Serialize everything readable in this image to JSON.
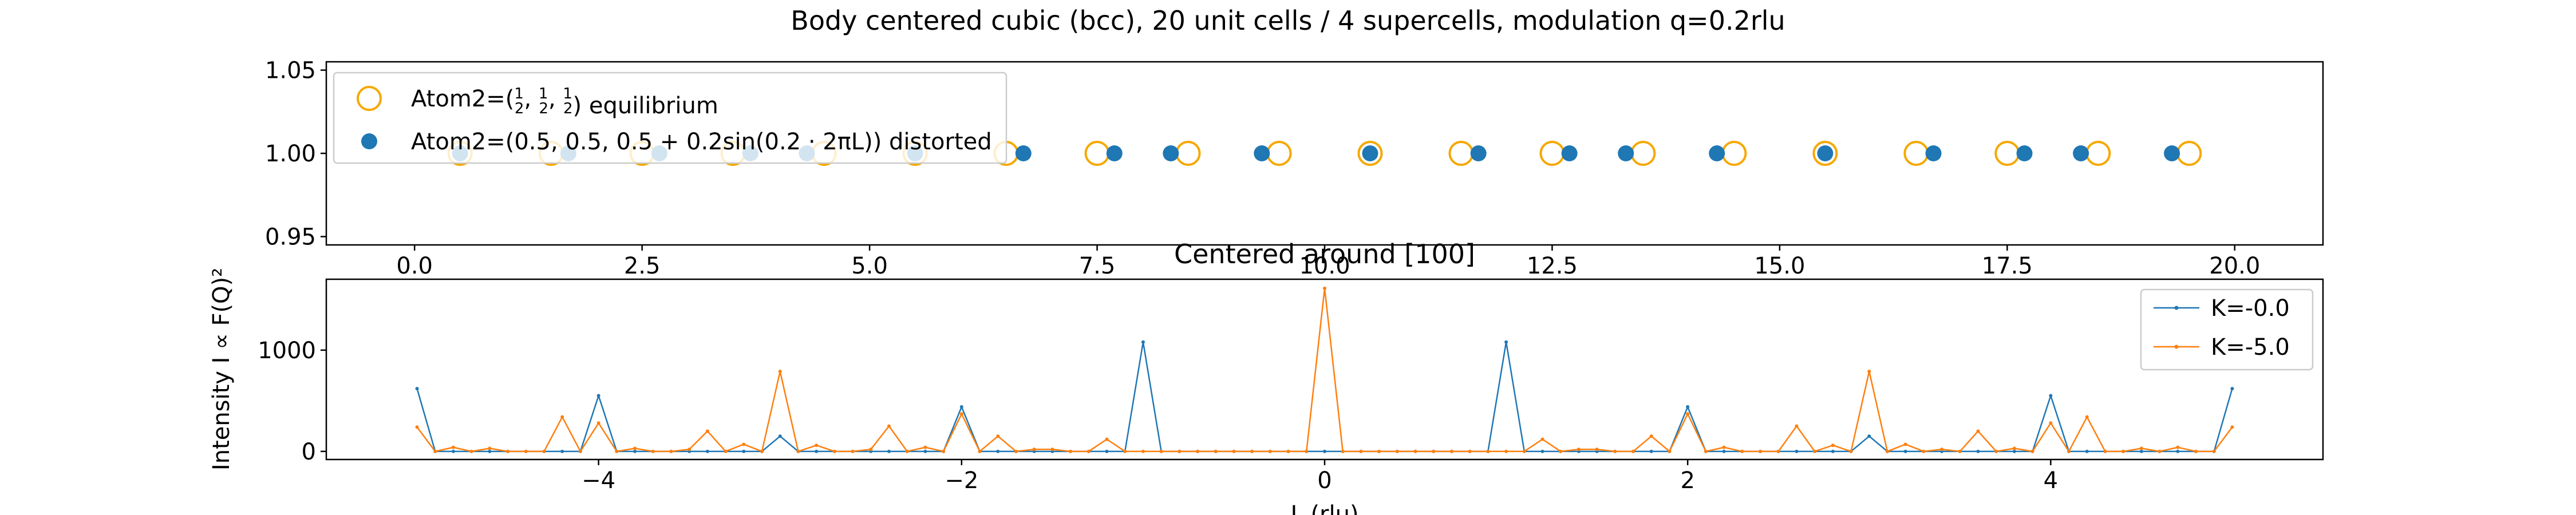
{
  "figure_title": "Body centered cubic (bcc), 20 unit cells / 4 supercells, modulation q=0.2rlu",
  "colors": {
    "blue": "#1f77b4",
    "orange": "#ff7f0e",
    "ring_orange": "#f5a800",
    "axes": "#000000"
  },
  "chart_data": [
    {
      "type": "scatter",
      "title": "",
      "xlabel": "",
      "ylabel": "",
      "xlim": [
        -0.97,
        20.97
      ],
      "ylim": [
        0.945,
        1.055
      ],
      "xticks": [
        0.0,
        2.5,
        5.0,
        7.5,
        10.0,
        12.5,
        15.0,
        17.5,
        20.0
      ],
      "xtick_labels": [
        "0.0",
        "2.5",
        "5.0",
        "7.5",
        "10.0",
        "12.5",
        "15.0",
        "17.5",
        "20.0"
      ],
      "yticks": [
        0.95,
        1.0,
        1.05
      ],
      "ytick_labels": [
        "0.95",
        "1.00",
        "1.05"
      ],
      "grid": false,
      "legend_placement": "upper-left",
      "series": [
        {
          "name_prefix": "Atom2=(",
          "name_suffix": ") equilibrium",
          "name_fraction": "1/2",
          "marker": "open-circle",
          "color": "#f5a800",
          "x": [
            0.5,
            1.5,
            2.5,
            3.5,
            4.5,
            5.5,
            6.5,
            7.5,
            8.5,
            9.5,
            10.5,
            11.5,
            12.5,
            13.5,
            14.5,
            15.5,
            16.5,
            17.5,
            18.5,
            19.5
          ],
          "y": [
            1,
            1,
            1,
            1,
            1,
            1,
            1,
            1,
            1,
            1,
            1,
            1,
            1,
            1,
            1,
            1,
            1,
            1,
            1,
            1
          ]
        },
        {
          "name": "Atom2=(0.5, 0.5, 0.5 + 0.2sin(0.2 · 2πL)) distorted",
          "marker": "filled-circle",
          "color": "#1f77b4",
          "x": [
            0.5,
            1.69,
            2.69,
            3.69,
            4.31,
            5.5,
            6.69,
            7.69,
            8.31,
            9.31,
            10.5,
            11.69,
            12.69,
            13.31,
            14.31,
            15.5,
            16.69,
            17.69,
            18.31,
            19.31
          ],
          "y": [
            1,
            1,
            1,
            1,
            1,
            1,
            1,
            1,
            1,
            1,
            1,
            1,
            1,
            1,
            1,
            1,
            1,
            1,
            1,
            1
          ]
        }
      ]
    },
    {
      "type": "line",
      "title": "Centered around [100]",
      "xlabel": "L (rlu)",
      "ylabel": "Intensity I ∝ F(Q)²",
      "xlim": [
        -5.5,
        5.5
      ],
      "ylim": [
        -80,
        1700
      ],
      "xticks": [
        -4,
        -2,
        0,
        2,
        4
      ],
      "xtick_labels": [
        "−4",
        "−2",
        "0",
        "2",
        "4"
      ],
      "yticks": [
        0,
        1000
      ],
      "ytick_labels": [
        "0",
        "1000"
      ],
      "grid": false,
      "legend_placement": "upper-right",
      "x_start": -5.0,
      "x_step": 0.1,
      "series": [
        {
          "name": "K=-0.0",
          "color": "#1f77b4",
          "values": [
            620,
            0,
            0,
            0,
            0,
            0,
            0,
            0,
            0,
            0,
            550,
            0,
            0,
            0,
            0,
            0,
            0,
            0,
            0,
            0,
            150,
            0,
            0,
            0,
            0,
            0,
            0,
            0,
            0,
            0,
            440,
            0,
            0,
            0,
            0,
            0,
            0,
            0,
            0,
            0,
            1080,
            0,
            0,
            0,
            0,
            0,
            0,
            0,
            0,
            0,
            0,
            0,
            0,
            0,
            0,
            0,
            0,
            0,
            0,
            0,
            1080,
            0,
            0,
            0,
            0,
            0,
            0,
            0,
            0,
            0,
            440,
            0,
            0,
            0,
            0,
            0,
            0,
            0,
            0,
            0,
            150,
            0,
            0,
            0,
            0,
            0,
            0,
            0,
            0,
            0,
            550,
            0,
            0,
            0,
            0,
            0,
            0,
            0,
            0,
            0,
            620
          ]
        },
        {
          "name": "K=-5.0",
          "color": "#ff7f0e",
          "values": [
            240,
            0,
            40,
            0,
            30,
            0,
            0,
            0,
            340,
            0,
            280,
            0,
            30,
            0,
            0,
            20,
            200,
            0,
            70,
            0,
            790,
            0,
            60,
            0,
            0,
            20,
            250,
            0,
            40,
            0,
            370,
            0,
            150,
            0,
            20,
            20,
            0,
            0,
            120,
            0,
            0,
            0,
            0,
            0,
            0,
            0,
            0,
            0,
            0,
            0,
            1610,
            0,
            0,
            0,
            0,
            0,
            0,
            0,
            0,
            0,
            0,
            0,
            120,
            0,
            20,
            20,
            0,
            0,
            150,
            0,
            370,
            0,
            40,
            0,
            0,
            0,
            250,
            0,
            60,
            0,
            790,
            0,
            70,
            0,
            20,
            0,
            200,
            0,
            30,
            0,
            280,
            0,
            340,
            0,
            0,
            30,
            0,
            40,
            0,
            0,
            240
          ]
        }
      ]
    }
  ]
}
